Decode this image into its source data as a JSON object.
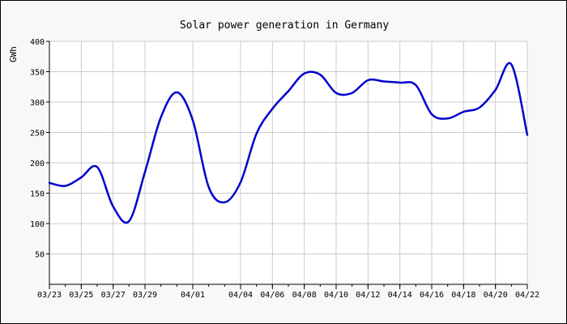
{
  "chart_data": {
    "type": "line",
    "title": "Solar power generation in Germany",
    "xlabel": "",
    "ylabel": "GWh",
    "ylim": [
      0,
      400
    ],
    "yticks": [
      50,
      100,
      150,
      200,
      250,
      300,
      350,
      400
    ],
    "xlim": [
      "2020-03-23",
      "2020-04-22"
    ],
    "xticks": [
      "03/23",
      "03/25",
      "03/27",
      "03/29",
      "04/01",
      "04/04",
      "04/06",
      "04/08",
      "04/10",
      "04/12",
      "04/14",
      "04/16",
      "04/18",
      "04/20",
      "04/22"
    ],
    "grid": true,
    "series": [
      {
        "color": "#0000cc",
        "points": [
          {
            "x": "2020-03-23",
            "y": 167
          },
          {
            "x": "2020-03-24",
            "y": 162
          },
          {
            "x": "2020-03-25",
            "y": 176
          },
          {
            "x": "2020-03-26",
            "y": 193
          },
          {
            "x": "2020-03-27",
            "y": 128
          },
          {
            "x": "2020-03-28",
            "y": 104
          },
          {
            "x": "2020-03-29",
            "y": 185
          },
          {
            "x": "2020-03-30",
            "y": 275
          },
          {
            "x": "2020-03-31",
            "y": 316
          },
          {
            "x": "2020-04-01",
            "y": 270
          },
          {
            "x": "2020-04-02",
            "y": 160
          },
          {
            "x": "2020-04-03",
            "y": 135
          },
          {
            "x": "2020-04-04",
            "y": 168
          },
          {
            "x": "2020-04-05",
            "y": 248
          },
          {
            "x": "2020-04-06",
            "y": 289
          },
          {
            "x": "2020-04-07",
            "y": 318
          },
          {
            "x": "2020-04-08",
            "y": 347
          },
          {
            "x": "2020-04-09",
            "y": 345
          },
          {
            "x": "2020-04-10",
            "y": 315
          },
          {
            "x": "2020-04-11",
            "y": 315
          },
          {
            "x": "2020-04-12",
            "y": 336
          },
          {
            "x": "2020-04-13",
            "y": 334
          },
          {
            "x": "2020-04-14",
            "y": 332
          },
          {
            "x": "2020-04-15",
            "y": 328
          },
          {
            "x": "2020-04-16",
            "y": 280
          },
          {
            "x": "2020-04-17",
            "y": 273
          },
          {
            "x": "2020-04-18",
            "y": 284
          },
          {
            "x": "2020-04-19",
            "y": 291
          },
          {
            "x": "2020-04-20",
            "y": 320
          },
          {
            "x": "2020-04-21",
            "y": 362
          },
          {
            "x": "2020-04-22",
            "y": 246
          }
        ]
      }
    ]
  }
}
